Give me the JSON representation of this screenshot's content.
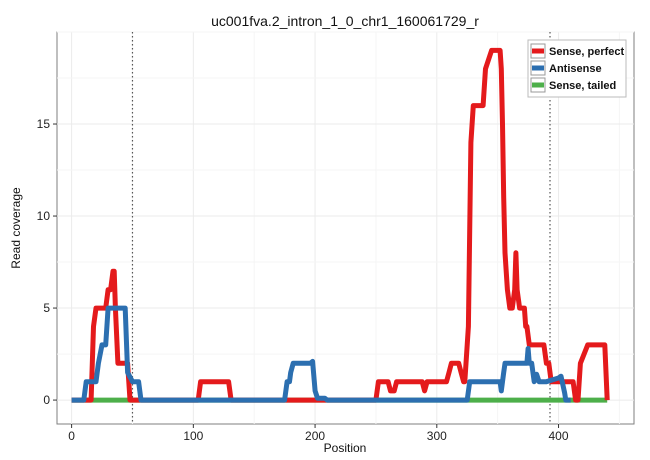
{
  "chart_data": {
    "type": "line",
    "title": "uc001fva.2_intron_1_0_chr1_160061729_r",
    "xlabel": "Position",
    "ylabel": "Read coverage",
    "xlim": [
      -12,
      462
    ],
    "ylim": [
      -1.3,
      20
    ],
    "x_ticks": [
      0,
      100,
      200,
      300,
      400
    ],
    "y_ticks": [
      0,
      5,
      10,
      15
    ],
    "grid": true,
    "legend_position": "top-right",
    "reference_lines": [
      50,
      393
    ],
    "series": [
      {
        "name": "Sense, perfect",
        "color": "#e41a1c",
        "x": [
          0,
          16,
          18,
          20,
          25,
          28,
          30,
          32,
          34,
          35,
          36,
          38,
          40,
          46,
          48,
          50,
          104,
          106,
          108,
          118,
          120,
          127,
          129,
          131,
          250,
          252,
          254,
          258,
          260,
          262,
          265,
          267,
          269,
          288,
          290,
          292,
          300,
          302,
          306,
          308,
          310,
          312,
          318,
          320,
          322,
          323,
          324,
          325,
          326,
          328,
          330,
          338,
          340,
          345,
          346,
          352,
          353,
          354,
          355,
          356,
          358,
          360,
          362,
          364,
          365,
          366,
          368,
          370,
          372,
          373,
          374,
          376,
          378,
          380,
          382,
          384,
          386,
          388,
          390,
          392,
          394,
          396,
          402,
          404,
          410,
          412,
          414,
          416,
          418,
          424,
          426,
          436,
          438,
          440
        ],
        "values": [
          0,
          0,
          4,
          5,
          5,
          5,
          6,
          6,
          7,
          7,
          5,
          2,
          2,
          2,
          0,
          0,
          0,
          1,
          1,
          1,
          1,
          1,
          1,
          0,
          0,
          1,
          1,
          1,
          1,
          0.5,
          0.5,
          1,
          1,
          1,
          0.5,
          1,
          1,
          1,
          1,
          1,
          1.5,
          2,
          2,
          1.5,
          1,
          1,
          2,
          3,
          4,
          14,
          16,
          16,
          18,
          19,
          19,
          19,
          18,
          15,
          11,
          8,
          6,
          5,
          5,
          6,
          8,
          6,
          5,
          5,
          5,
          4,
          4,
          3,
          3,
          3,
          3,
          3,
          3,
          3,
          2,
          2,
          1,
          1,
          1,
          1,
          1,
          1,
          0,
          0,
          2,
          3,
          3,
          3,
          3,
          0
        ]
      },
      {
        "name": "Antisense",
        "color": "#2c6fb0",
        "x": [
          0,
          10,
          12,
          15,
          20,
          22,
          25,
          28,
          30,
          42,
          44,
          46,
          50,
          52,
          55,
          56,
          57,
          58,
          59,
          175,
          177,
          179,
          180,
          182,
          183,
          196,
          198,
          200,
          202,
          205,
          208,
          210,
          325,
          327,
          329,
          330,
          350,
          352,
          353,
          355,
          356,
          370,
          372,
          374,
          375,
          376,
          378,
          380,
          382,
          384,
          390,
          400,
          402,
          405,
          406,
          410
        ],
        "values": [
          0,
          0,
          1,
          1,
          1,
          2,
          3,
          3,
          5,
          5,
          5,
          1.5,
          1,
          1,
          1,
          0.5,
          0,
          0,
          0,
          0,
          1,
          1,
          1.5,
          2,
          2,
          2,
          2.1,
          0.5,
          0.1,
          0.1,
          0.1,
          0,
          0,
          1,
          1,
          1,
          1,
          1,
          0.5,
          1.5,
          2,
          2,
          2,
          2,
          2.8,
          2,
          2,
          1,
          1.4,
          1,
          1,
          1.2,
          1.3,
          0.4,
          0,
          0
        ]
      },
      {
        "name": "Sense, tailed",
        "color": "#4daf4a",
        "x": [
          0,
          440
        ],
        "values": [
          0,
          0
        ]
      }
    ]
  }
}
